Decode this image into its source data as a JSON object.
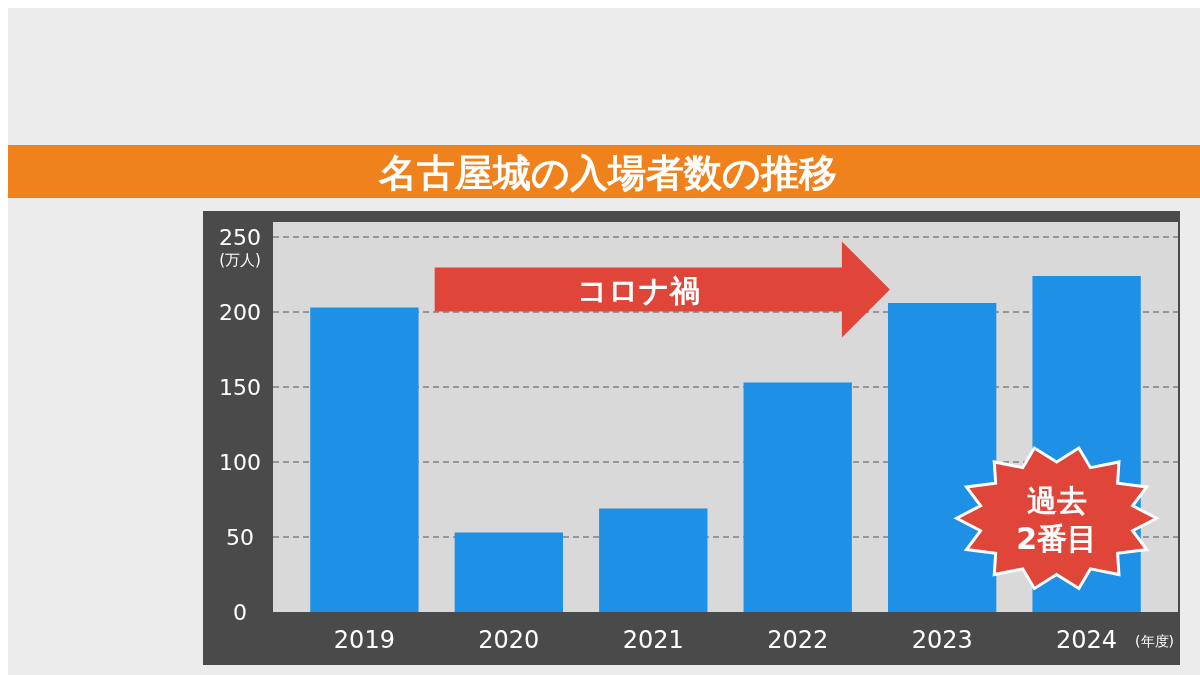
{
  "chart_data": {
    "type": "bar",
    "title": "名古屋城の入場者数の推移",
    "ylabel": "(万人)",
    "xlabel": "(年度)",
    "categories": [
      "2019",
      "2020",
      "2021",
      "2022",
      "2023",
      "2024"
    ],
    "values": [
      203,
      53,
      69,
      153,
      206,
      224
    ],
    "color": "#1e91e6",
    "ylim": [
      0,
      250
    ],
    "yticks": [
      0,
      50,
      100,
      150,
      200,
      250
    ],
    "grid": "y",
    "annotations": [
      "コロナ禍",
      "過去\n2番目"
    ]
  }
}
